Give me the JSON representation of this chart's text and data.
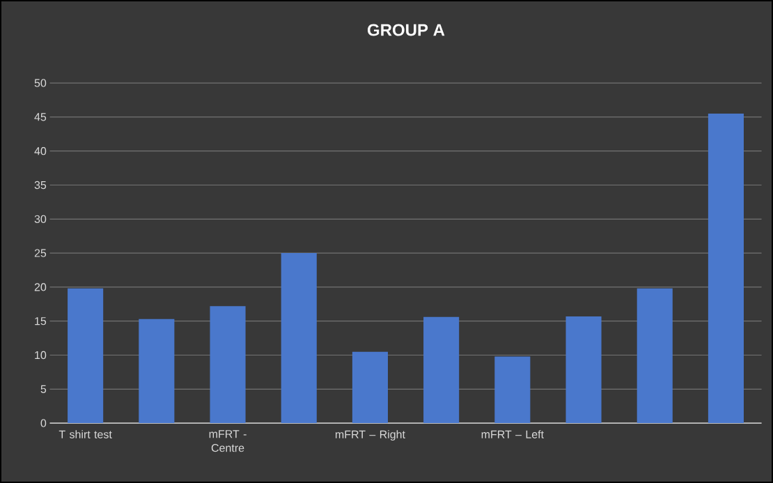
{
  "chart_data": {
    "type": "bar",
    "title": "GROUP A",
    "categories": [
      "T shirt test",
      null,
      "mFRT - Centre",
      null,
      "mFRT – Right",
      null,
      "mFRT – Left",
      null,
      null,
      null
    ],
    "values": [
      19.8,
      15.3,
      17.2,
      25.0,
      10.5,
      15.6,
      9.8,
      15.7,
      19.8,
      45.5
    ],
    "color": "#4a78cc",
    "ylim": [
      0,
      50
    ],
    "yticks": [
      0,
      5,
      10,
      15,
      20,
      25,
      30,
      35,
      40,
      45,
      50
    ],
    "grid": "y"
  }
}
